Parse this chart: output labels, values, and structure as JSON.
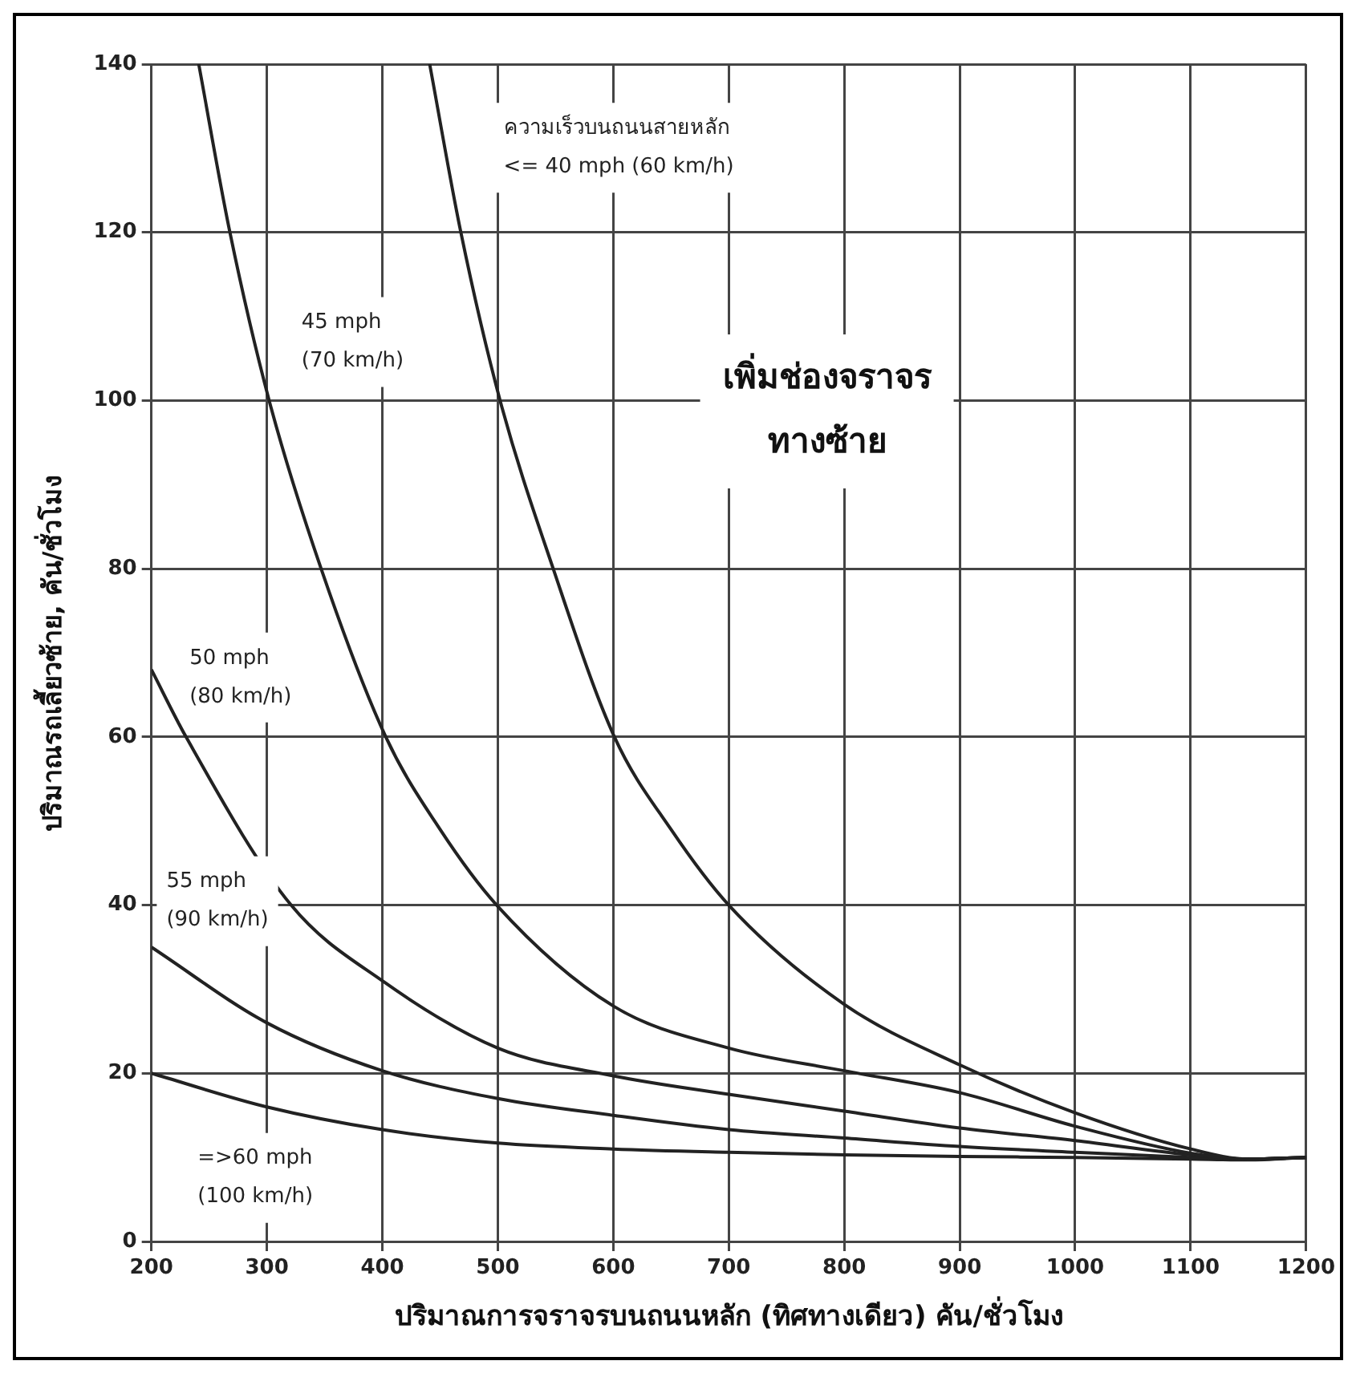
{
  "chart_data": {
    "type": "line",
    "xlabel": "ปริมาณการจราจรบนถนนหลัก (ทิศทางเดียว) คัน/ชั่วโมง",
    "ylabel": "ปริมาณรถเลี้ยวซ้าย, คัน/ชั่วโมง",
    "xlim": [
      200,
      1200
    ],
    "xticks": [
      200,
      300,
      400,
      500,
      600,
      700,
      800,
      900,
      1000,
      1100,
      1200
    ],
    "ylim": [
      0,
      140
    ],
    "yticks": [
      0,
      20,
      40,
      60,
      80,
      100,
      120,
      140
    ],
    "grid": true,
    "legend": false,
    "marker": "none",
    "line_style": "solid",
    "series": [
      {
        "color": "#222222",
        "x": [
          441,
          468,
          502,
          548,
          601,
          650,
          700,
          800,
          900,
          1000,
          1100,
          1150,
          1200
        ],
        "values": [
          140,
          120,
          100,
          80,
          60,
          49,
          40,
          28.2,
          21,
          15.3,
          11,
          9.8,
          10
        ]
      },
      {
        "color": "#222222",
        "x": [
          241,
          268,
          302,
          347,
          403,
          450,
          499,
          600,
          700,
          800,
          900,
          1000,
          1100,
          1150,
          1200
        ],
        "values": [
          140,
          120,
          100,
          80,
          60,
          49,
          40,
          28,
          23,
          20.3,
          17.7,
          13.7,
          10.5,
          9.8,
          10
        ]
      },
      {
        "color": "#222222",
        "x": [
          200,
          230,
          321,
          400,
          500,
          600,
          700,
          800,
          900,
          1000,
          1100,
          1150,
          1200
        ],
        "values": [
          68,
          60,
          40,
          31,
          23,
          19.7,
          17.5,
          15.5,
          13.5,
          12,
          10.3,
          9.8,
          10
        ]
      },
      {
        "color": "#222222",
        "x": [
          200,
          300,
          400,
          500,
          600,
          700,
          800,
          900,
          1000,
          1100,
          1150,
          1200
        ],
        "values": [
          35,
          26,
          20.3,
          17,
          15,
          13.3,
          12.3,
          11.3,
          10.6,
          10,
          9.8,
          10
        ]
      },
      {
        "color": "#222222",
        "x": [
          200,
          300,
          400,
          500,
          600,
          700,
          800,
          900,
          1000,
          1100,
          1150,
          1200
        ],
        "values": [
          20,
          16,
          13.3,
          11.7,
          11,
          10.6,
          10.3,
          10.1,
          10,
          9.8,
          9.7,
          10
        ]
      }
    ],
    "annotations": [
      "ความเร็วบนถนนสายหลัก\n<= 40 mph (60 km/h)",
      "45 mph\n(70 km/h)",
      "50 mph\n(80 km/h)",
      "55 mph\n(90 km/h)",
      "=>60 mph\n(100 km/h)",
      "เพิ่มช่องจราจร\nทางซ้าย"
    ]
  }
}
